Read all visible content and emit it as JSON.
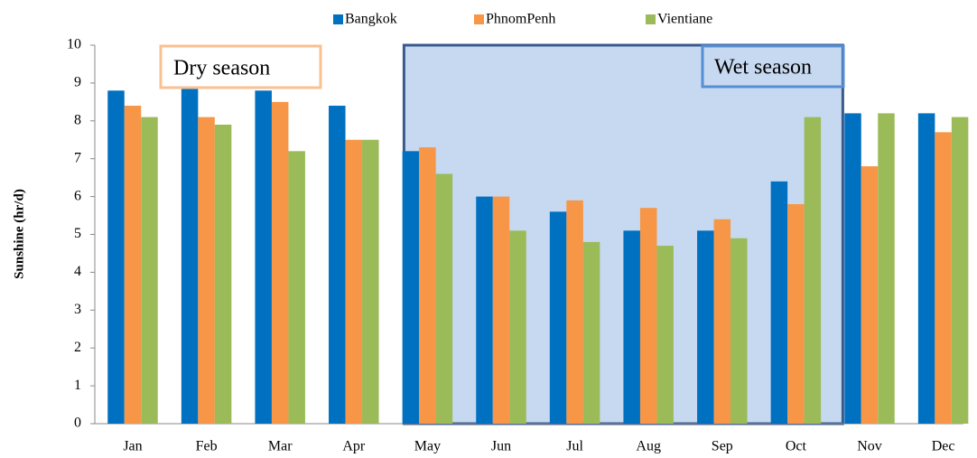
{
  "chart_data": {
    "type": "bar",
    "y_label": "Sunshine (hr/d)",
    "annotations": [
      "Dry season",
      "Wet season"
    ],
    "categories": [
      "Jan",
      "Feb",
      "Mar",
      "Apr",
      "May",
      "Jun",
      "Jul",
      "Aug",
      "Sep",
      "Oct",
      "Nov",
      "Dec"
    ],
    "series": [
      {
        "name": "Bangkok",
        "color": "#0070c0",
        "values": [
          8.8,
          8.9,
          8.8,
          8.4,
          7.2,
          6.0,
          5.6,
          5.1,
          5.1,
          6.4,
          8.2,
          8.2
        ]
      },
      {
        "name": "PhnomPenh",
        "color": "#f79646",
        "values": [
          8.4,
          8.1,
          8.5,
          7.5,
          7.3,
          6.0,
          5.9,
          5.7,
          5.4,
          5.8,
          6.8,
          7.7
        ]
      },
      {
        "name": "Vientiane",
        "color": "#9bbb59",
        "values": [
          8.1,
          7.9,
          7.2,
          7.5,
          6.6,
          5.1,
          4.8,
          4.7,
          4.9,
          8.1,
          8.2,
          8.1
        ]
      }
    ],
    "ylim": [
      0,
      10
    ],
    "yticks": [
      0,
      1,
      2,
      3,
      4,
      5,
      6,
      7,
      8,
      9,
      10
    ],
    "legend": "top"
  }
}
